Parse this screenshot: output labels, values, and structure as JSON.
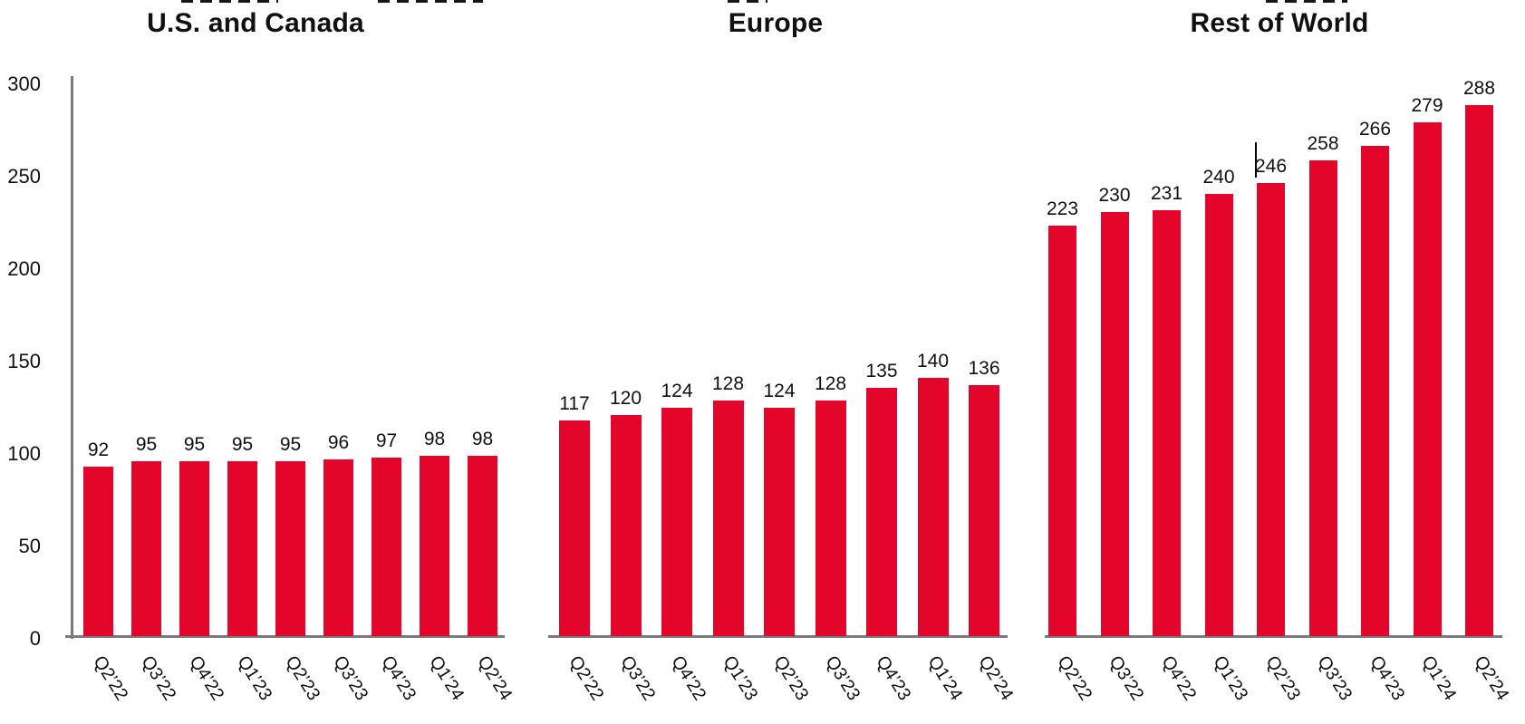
{
  "chart_data": [
    {
      "type": "bar",
      "title": "U.S. and Canada",
      "categories": [
        "Q2’22",
        "Q3’22",
        "Q4’22",
        "Q1’23",
        "Q2’23",
        "Q3’23",
        "Q4’23",
        "Q1’24",
        "Q2’24"
      ],
      "values": [
        92,
        95,
        95,
        95,
        95,
        96,
        97,
        98,
        98
      ],
      "ylim": [
        0,
        300
      ],
      "yticks": [
        300,
        250,
        200,
        150,
        100,
        50,
        0
      ],
      "y_axis_visible": true,
      "data_labels": "above-bars",
      "grid": false,
      "legend": "none",
      "bar_color": "#E4052B",
      "axis_color": "#7A7A7A"
    },
    {
      "type": "bar",
      "title": "Europe",
      "categories": [
        "Q2’22",
        "Q3’22",
        "Q4’22",
        "Q1’23",
        "Q2’23",
        "Q3’23",
        "Q4’23",
        "Q1’24",
        "Q2’24"
      ],
      "values": [
        117,
        120,
        124,
        128,
        124,
        128,
        135,
        140,
        136
      ],
      "ylim": [
        0,
        300
      ],
      "yticks": [],
      "y_axis_visible": false,
      "data_labels": "above-bars",
      "grid": false,
      "legend": "none",
      "bar_color": "#E4052B",
      "axis_color": "#7A7A7A"
    },
    {
      "type": "bar",
      "title": "Rest of World",
      "categories": [
        "Q2’22",
        "Q3’22",
        "Q4’22",
        "Q1’23",
        "Q2’23",
        "Q3’23",
        "Q4’23",
        "Q1’24",
        "Q2’24"
      ],
      "values": [
        223,
        230,
        231,
        240,
        246,
        258,
        266,
        279,
        288
      ],
      "ylim": [
        0,
        300
      ],
      "yticks": [],
      "y_axis_visible": false,
      "data_labels": "above-bars",
      "grid": false,
      "legend": "none",
      "bar_color": "#E4052B",
      "axis_color": "#7A7A7A"
    }
  ],
  "artifacts": {
    "text_cursor": "thin vertical caret line immediately left of the 246 data label",
    "top_edge": "clipped bottom fragments of a cropped text line at the very top edge"
  }
}
